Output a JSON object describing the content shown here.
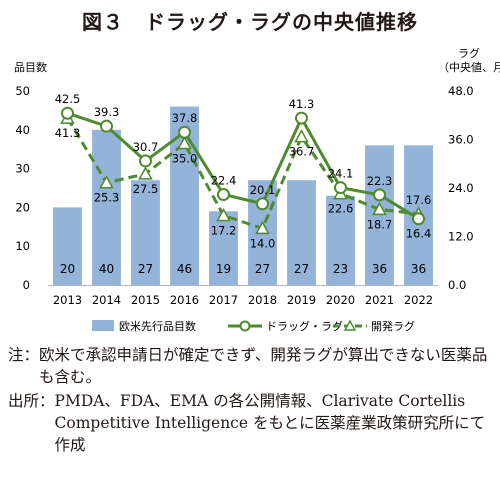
{
  "figure": {
    "title": "図３　ドラッグ・ラグの中央値推移",
    "note_head": "注：",
    "note_body": "欧米で承認申請日が確定できず、開発ラグが算出できない医薬品も含む。",
    "source_head": "出所：",
    "source_body": "PMDA、FDA、EMA の各公開情報、Clarivate Cortellis Competitive Intelligence をもとに医薬産業政策研究所にて作成"
  },
  "colors": {
    "bar": "#94b3d9",
    "drug_lag": "#4e8a2e",
    "dev_lag": "#4e8a2e",
    "axis": "#b3b3b3",
    "text": "#231815"
  },
  "chart_data": {
    "type": "bar",
    "categories": [
      "2013",
      "2014",
      "2015",
      "2016",
      "2017",
      "2018",
      "2019",
      "2020",
      "2021",
      "2022"
    ],
    "ylabel_left": "品目数",
    "ylabel_right": "ラグ",
    "ylabel_right_sub": "（中央値、月）",
    "ylim_left": [
      0,
      50
    ],
    "ylim_right": [
      0,
      48
    ],
    "yticks_left": [
      "0",
      "10",
      "20",
      "30",
      "40",
      "50"
    ],
    "yticks_right": [
      "0.0",
      "12.0",
      "24.0",
      "36.0",
      "48.0"
    ],
    "grid": false,
    "legend_position": "bottom",
    "series": [
      {
        "name": "欧米先行品目数",
        "type": "bar",
        "axis": "left",
        "values": [
          20,
          40,
          27,
          46,
          19,
          27,
          27,
          23,
          36,
          36
        ]
      },
      {
        "name": "ドラッグ・ラグ",
        "type": "line",
        "axis": "right",
        "marker": "circle",
        "values": [
          42.5,
          39.3,
          30.7,
          37.8,
          22.4,
          20.1,
          41.3,
          24.1,
          22.3,
          16.4
        ]
      },
      {
        "name": "開発ラグ",
        "type": "line",
        "axis": "right",
        "marker": "triangle",
        "dashed": true,
        "values": [
          41.3,
          25.3,
          27.5,
          35.0,
          17.2,
          14.0,
          36.7,
          22.6,
          18.7,
          17.6
        ]
      }
    ]
  }
}
